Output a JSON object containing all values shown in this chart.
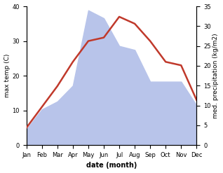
{
  "months": [
    "Jan",
    "Feb",
    "Mar",
    "Apr",
    "May",
    "Jun",
    "Jul",
    "Aug",
    "Sep",
    "Oct",
    "Nov",
    "Dec"
  ],
  "temp": [
    5,
    11,
    17,
    24,
    30,
    31,
    37,
    35,
    30,
    24,
    23,
    13
  ],
  "precip": [
    4,
    9,
    11,
    15,
    34,
    32,
    25,
    24,
    16,
    16,
    16,
    10
  ],
  "temp_color": "#c0392b",
  "precip_fill_color": "#b8c4ea",
  "temp_ylim": [
    0,
    40
  ],
  "precip_ylim": [
    0,
    35
  ],
  "temp_yticks": [
    0,
    10,
    20,
    30,
    40
  ],
  "precip_yticks": [
    0,
    5,
    10,
    15,
    20,
    25,
    30,
    35
  ],
  "ylabel_left": "max temp (C)",
  "ylabel_right": "med. precipitation (kg/m2)",
  "xlabel": "date (month)",
  "temp_linewidth": 1.8,
  "xlabel_fontsize": 7,
  "ylabel_fontsize": 6.5,
  "tick_fontsize": 6
}
